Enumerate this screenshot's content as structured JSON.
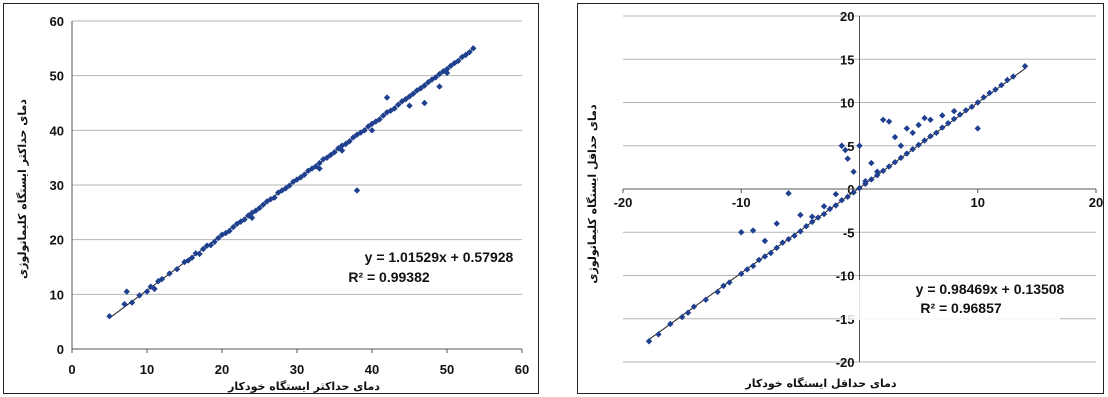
{
  "chart_data": [
    {
      "type": "scatter",
      "xlabel": "دمای حداکثر ایستگاه خودکار",
      "ylabel": "دمای حداکثر ایستگاه کلیماتولوژی",
      "xlim": [
        0,
        60
      ],
      "ylim": [
        0,
        60
      ],
      "xticks": [
        "0",
        "10",
        "20",
        "30",
        "40",
        "50",
        "60"
      ],
      "yticks": [
        "0",
        "10",
        "20",
        "30",
        "40",
        "50",
        "60"
      ],
      "trendline": {
        "slope": 1.01529,
        "intercept": 0.57928
      },
      "equation": "y = 1.01529x + 0.57928",
      "r2": "R² = 0.99382",
      "grid": "horizontal",
      "marker_color": "#1f3f8f",
      "points": [
        [
          5,
          6
        ],
        [
          7,
          8.2
        ],
        [
          7.3,
          10.5
        ],
        [
          8,
          8.5
        ],
        [
          9,
          9.8
        ],
        [
          10,
          10.5
        ],
        [
          10.5,
          11.4
        ],
        [
          11,
          11
        ],
        [
          11.5,
          12.4
        ],
        [
          12,
          12.8
        ],
        [
          13,
          13.8
        ],
        [
          14,
          14.6
        ],
        [
          15,
          15.9
        ],
        [
          15.5,
          16.2
        ],
        [
          16,
          16.7
        ],
        [
          16.5,
          17.5
        ],
        [
          17,
          17.4
        ],
        [
          17.5,
          18.3
        ],
        [
          18,
          18.9
        ],
        [
          18.5,
          19
        ],
        [
          19,
          19.6
        ],
        [
          19.5,
          20.3
        ],
        [
          20,
          20.9
        ],
        [
          20.5,
          21.2
        ],
        [
          21,
          21.6
        ],
        [
          21.5,
          22.3
        ],
        [
          22,
          22.9
        ],
        [
          22.5,
          23.3
        ],
        [
          23,
          23.7
        ],
        [
          23.5,
          24.4
        ],
        [
          24,
          24.9
        ],
        [
          24.5,
          25.3
        ],
        [
          25,
          25.8
        ],
        [
          25.5,
          26.4
        ],
        [
          26,
          27
        ],
        [
          26.5,
          27.4
        ],
        [
          27,
          27.7
        ],
        [
          27.5,
          28.6
        ],
        [
          28,
          29
        ],
        [
          28.5,
          29.4
        ],
        [
          29,
          29.9
        ],
        [
          29.5,
          30.6
        ],
        [
          30,
          31
        ],
        [
          30.5,
          31.4
        ],
        [
          31,
          31.9
        ],
        [
          31.5,
          32.6
        ],
        [
          32,
          33
        ],
        [
          32.5,
          33.4
        ],
        [
          33,
          34
        ],
        [
          33.5,
          34.7
        ],
        [
          34,
          35
        ],
        [
          34.5,
          35.5
        ],
        [
          35,
          36
        ],
        [
          35.5,
          36.7
        ],
        [
          36,
          37.2
        ],
        [
          36.5,
          37.5
        ],
        [
          37,
          38
        ],
        [
          37.5,
          38.7
        ],
        [
          38,
          39.2
        ],
        [
          38.5,
          39.6
        ],
        [
          39,
          40
        ],
        [
          39.5,
          40.7
        ],
        [
          40,
          41.2
        ],
        [
          40.5,
          41.6
        ],
        [
          41,
          42
        ],
        [
          41.5,
          42.7
        ],
        [
          42,
          43.3
        ],
        [
          42.5,
          43.6
        ],
        [
          43,
          44
        ],
        [
          43.5,
          44.7
        ],
        [
          44,
          45.3
        ],
        [
          44.5,
          45.7
        ],
        [
          45,
          46.2
        ],
        [
          45.5,
          46.7
        ],
        [
          46,
          47.3
        ],
        [
          46.5,
          47.7
        ],
        [
          47,
          48.2
        ],
        [
          47.5,
          48.8
        ],
        [
          48,
          49.3
        ],
        [
          48.5,
          49.7
        ],
        [
          49,
          50.3
        ],
        [
          49.5,
          50.8
        ],
        [
          50,
          51.2
        ],
        [
          50.5,
          51.8
        ],
        [
          51,
          52.3
        ],
        [
          51.5,
          52.7
        ],
        [
          52,
          53.4
        ],
        [
          52.5,
          53.8
        ],
        [
          53,
          54.3
        ],
        [
          53.5,
          55
        ],
        [
          38,
          29
        ],
        [
          42,
          46
        ],
        [
          47,
          45
        ],
        [
          45,
          44.5
        ],
        [
          24,
          24
        ],
        [
          33,
          33
        ],
        [
          36,
          36.3
        ],
        [
          40,
          40
        ],
        [
          50,
          50.5
        ],
        [
          49,
          48
        ]
      ]
    },
    {
      "type": "scatter",
      "xlabel": "دمای حداقل ایستگاه خودکار",
      "ylabel": "دمای حداقل ایستگاه کلیماتولوژی",
      "xlim": [
        -20,
        20
      ],
      "ylim": [
        -20,
        20
      ],
      "xticks": [
        "-20",
        "-10",
        "0",
        "10",
        "20"
      ],
      "yticks": [
        "-20",
        "-15",
        "-10",
        "-5",
        "0",
        "5",
        "10",
        "15",
        "20"
      ],
      "trendline": {
        "slope": 0.98469,
        "intercept": 0.13508
      },
      "equation": "y = 0.98469x + 0.13508",
      "r2": "R² = 0.96857",
      "grid": "horizontal",
      "marker_color": "#1f3f8f",
      "points": [
        [
          -17.8,
          -17.6
        ],
        [
          -17,
          -16.8
        ],
        [
          -16,
          -15.6
        ],
        [
          -15,
          -14.8
        ],
        [
          -14.5,
          -14.3
        ],
        [
          -14,
          -13.6
        ],
        [
          -13,
          -12.8
        ],
        [
          -12,
          -11.9
        ],
        [
          -11.5,
          -11.2
        ],
        [
          -11,
          -10.8
        ],
        [
          -10,
          -9.8
        ],
        [
          -9.5,
          -9.3
        ],
        [
          -9,
          -8.9
        ],
        [
          -8.5,
          -8.2
        ],
        [
          -8,
          -7.8
        ],
        [
          -7.5,
          -7.4
        ],
        [
          -7,
          -6.8
        ],
        [
          -6.5,
          -6.2
        ],
        [
          -6,
          -5.8
        ],
        [
          -5.5,
          -5.4
        ],
        [
          -5,
          -4.9
        ],
        [
          -4.5,
          -4.3
        ],
        [
          -4,
          -3.8
        ],
        [
          -3.5,
          -3.3
        ],
        [
          -3,
          -2.9
        ],
        [
          -2.5,
          -2.3
        ],
        [
          -2,
          -1.9
        ],
        [
          -1.5,
          -1.3
        ],
        [
          -1,
          -0.9
        ],
        [
          -0.5,
          -0.4
        ],
        [
          0,
          0.1
        ],
        [
          0.5,
          0.6
        ],
        [
          1,
          1.1
        ],
        [
          1.5,
          1.6
        ],
        [
          2,
          2.1
        ],
        [
          2.5,
          2.6
        ],
        [
          3,
          3.1
        ],
        [
          3.5,
          3.6
        ],
        [
          4,
          4.1
        ],
        [
          4.5,
          4.6
        ],
        [
          5,
          5.1
        ],
        [
          5.5,
          5.6
        ],
        [
          6,
          6.1
        ],
        [
          6.5,
          6.5
        ],
        [
          7,
          7.1
        ],
        [
          7.5,
          7.6
        ],
        [
          8,
          8.1
        ],
        [
          8.5,
          8.6
        ],
        [
          9,
          9.1
        ],
        [
          9.5,
          9.5
        ],
        [
          10,
          10
        ],
        [
          10.5,
          10.6
        ],
        [
          11,
          11.1
        ],
        [
          11.5,
          11.5
        ],
        [
          12,
          12
        ],
        [
          12.5,
          12.6
        ],
        [
          13,
          13
        ],
        [
          14,
          14.2
        ],
        [
          -10,
          -5
        ],
        [
          -9,
          -4.8
        ],
        [
          -8,
          -6
        ],
        [
          -7,
          -4
        ],
        [
          -6,
          -0.5
        ],
        [
          -5,
          -3
        ],
        [
          -4,
          -3.2
        ],
        [
          -3,
          -2
        ],
        [
          -2,
          -0.6
        ],
        [
          -1.5,
          5
        ],
        [
          -1.2,
          4.5
        ],
        [
          -1,
          3.5
        ],
        [
          -0.5,
          2
        ],
        [
          0,
          5
        ],
        [
          0.5,
          0.9
        ],
        [
          1,
          3
        ],
        [
          1.5,
          2
        ],
        [
          2,
          8
        ],
        [
          2.5,
          7.8
        ],
        [
          3,
          6
        ],
        [
          3.5,
          5
        ],
        [
          4,
          7
        ],
        [
          4.5,
          6.5
        ],
        [
          5,
          7.4
        ],
        [
          5.5,
          8.2
        ],
        [
          6,
          8
        ],
        [
          7,
          8.5
        ],
        [
          8,
          9
        ],
        [
          10,
          7
        ]
      ]
    }
  ]
}
